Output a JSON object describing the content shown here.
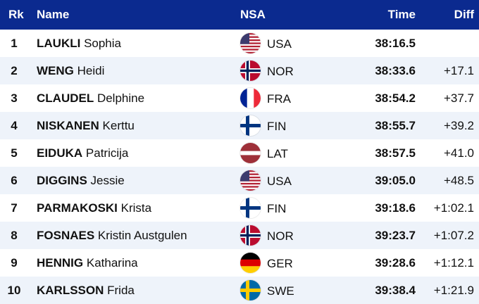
{
  "header": {
    "rank": "Rk",
    "name": "Name",
    "nsa": "NSA",
    "time": "Time",
    "diff": "Diff"
  },
  "colors": {
    "header_bg": "#0b2a8f",
    "header_text": "#ffffff",
    "row_alt_bg": "#eef3fa"
  },
  "rows": [
    {
      "rank": "1",
      "last": "LAUKLI",
      "first": "Sophia",
      "flag": "usa-flag-icon",
      "nsa": "USA",
      "time": "38:16.5",
      "diff": ""
    },
    {
      "rank": "2",
      "last": "WENG",
      "first": "Heidi",
      "flag": "nor-flag-icon",
      "nsa": "NOR",
      "time": "38:33.6",
      "diff": "+17.1"
    },
    {
      "rank": "3",
      "last": "CLAUDEL",
      "first": "Delphine",
      "flag": "fra-flag-icon",
      "nsa": "FRA",
      "time": "38:54.2",
      "diff": "+37.7"
    },
    {
      "rank": "4",
      "last": "NISKANEN",
      "first": "Kerttu",
      "flag": "fin-flag-icon",
      "nsa": "FIN",
      "time": "38:55.7",
      "diff": "+39.2"
    },
    {
      "rank": "5",
      "last": "EIDUKA",
      "first": "Patricija",
      "flag": "lat-flag-icon",
      "nsa": "LAT",
      "time": "38:57.5",
      "diff": "+41.0"
    },
    {
      "rank": "6",
      "last": "DIGGINS",
      "first": "Jessie",
      "flag": "usa-flag-icon",
      "nsa": "USA",
      "time": "39:05.0",
      "diff": "+48.5"
    },
    {
      "rank": "7",
      "last": "PARMAKOSKI",
      "first": "Krista",
      "flag": "fin-flag-icon",
      "nsa": "FIN",
      "time": "39:18.6",
      "diff": "+1:02.1"
    },
    {
      "rank": "8",
      "last": "FOSNAES",
      "first": "Kristin Austgulen",
      "flag": "nor-flag-icon",
      "nsa": "NOR",
      "time": "39:23.7",
      "diff": "+1:07.2"
    },
    {
      "rank": "9",
      "last": "HENNIG",
      "first": "Katharina",
      "flag": "ger-flag-icon",
      "nsa": "GER",
      "time": "39:28.6",
      "diff": "+1:12.1"
    },
    {
      "rank": "10",
      "last": "KARLSSON",
      "first": "Frida",
      "flag": "swe-flag-icon",
      "nsa": "SWE",
      "time": "39:38.4",
      "diff": "+1:21.9"
    }
  ]
}
